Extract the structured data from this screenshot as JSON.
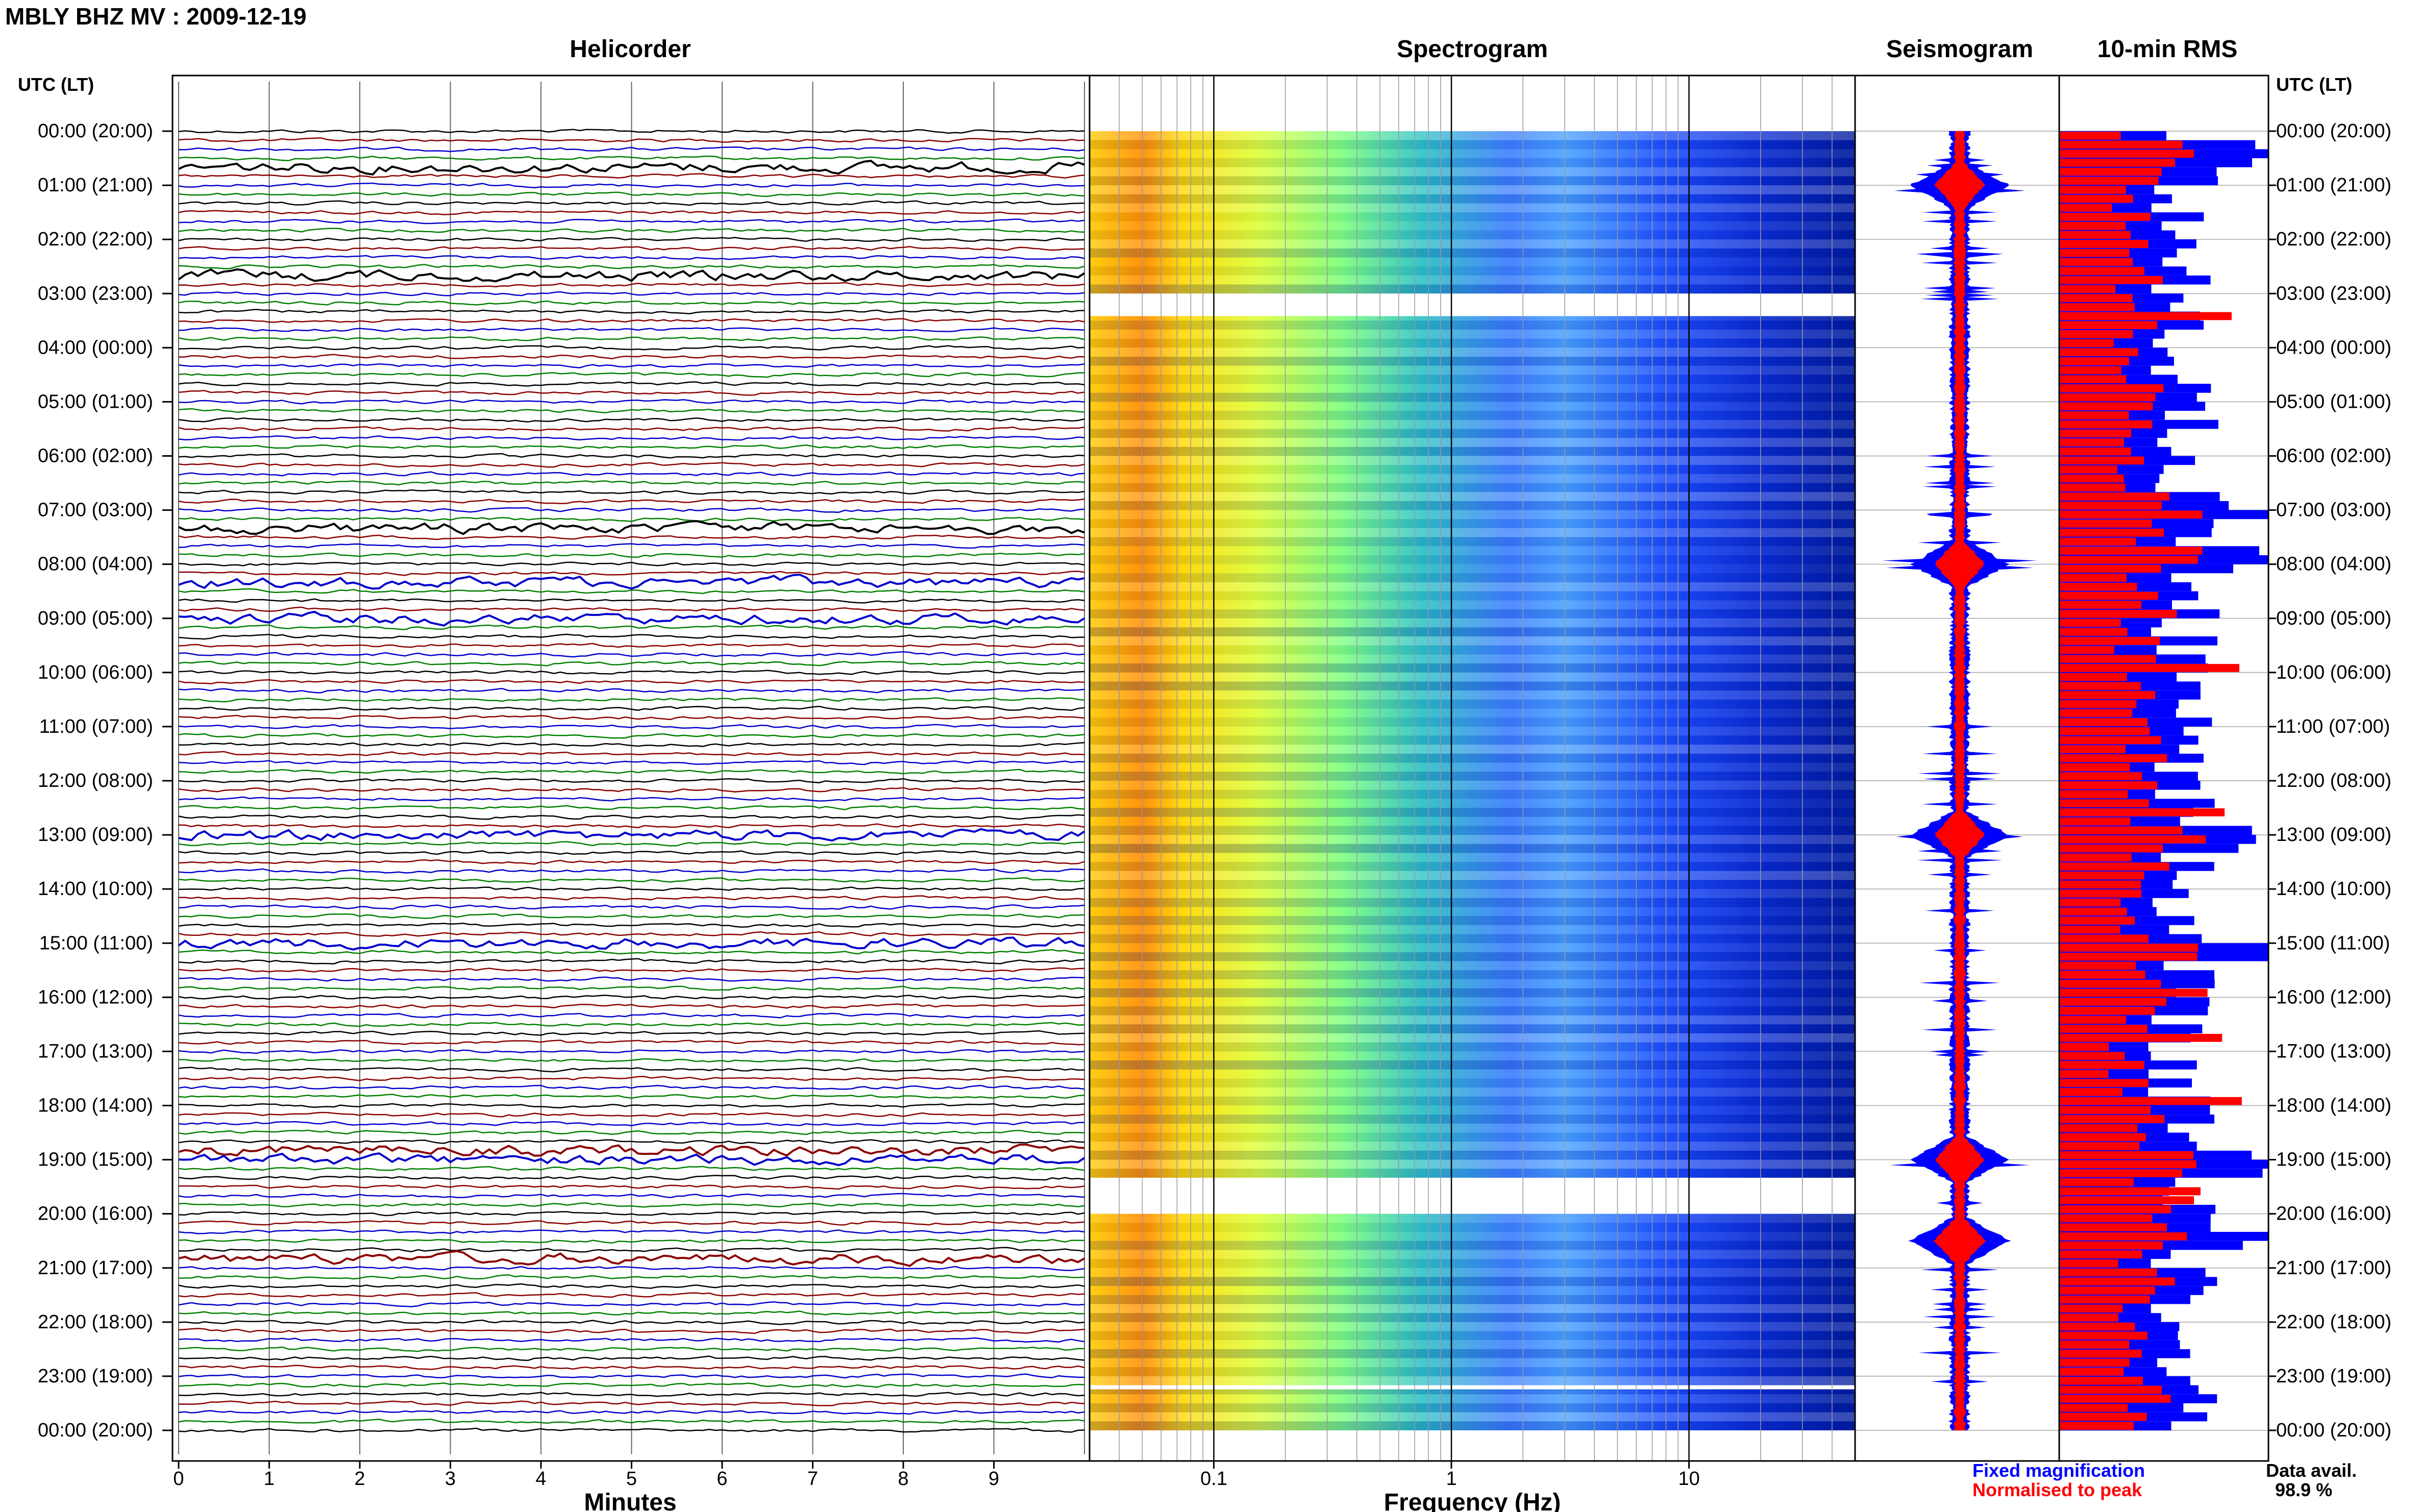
{
  "title": "MBLY BHZ MV : 2009-12-19",
  "panels": {
    "helicorder": "Helicorder",
    "spectrogram": "Spectrogram",
    "seismogram": "Seismogram",
    "rms": "10-min RMS"
  },
  "utc_label_left": "UTC (LT)",
  "utc_label_right": "UTC (LT)",
  "time_labels": [
    "00:00 (20:00)",
    "01:00 (21:00)",
    "02:00 (22:00)",
    "03:00 (23:00)",
    "04:00 (00:00)",
    "05:00 (01:00)",
    "06:00 (02:00)",
    "07:00 (03:00)",
    "08:00 (04:00)",
    "09:00 (05:00)",
    "10:00 (06:00)",
    "11:00 (07:00)",
    "12:00 (08:00)",
    "13:00 (09:00)",
    "14:00 (10:00)",
    "15:00 (11:00)",
    "16:00 (12:00)",
    "17:00 (13:00)",
    "18:00 (14:00)",
    "19:00 (15:00)",
    "20:00 (16:00)",
    "21:00 (17:00)",
    "22:00 (18:00)",
    "23:00 (19:00)",
    "00:00 (20:00)"
  ],
  "minutes_ticks": [
    "0",
    "1",
    "2",
    "3",
    "4",
    "5",
    "6",
    "7",
    "8",
    "9"
  ],
  "minutes_label": "Minutes",
  "freq_ticks": [
    "0.1",
    "1",
    "10"
  ],
  "freq_label": "Frequency (Hz)",
  "legend": {
    "fixed": "Fixed magnification",
    "normalised": "Normalised to peak",
    "fixed_color": "#0000ff",
    "normalised_color": "#ff0000"
  },
  "data_avail_label": "Data avail.",
  "data_avail_value": "98.9 %",
  "colors": {
    "helicorder_lines": [
      "#000000",
      "#8b0000",
      "#0000cd",
      "#008000"
    ],
    "spectrogram_low": "#00008b",
    "spectrogram_high": "#ff4500"
  },
  "chart_data": [
    {
      "type": "line",
      "title": "Helicorder",
      "xlabel": "Minutes",
      "xlim": [
        0,
        10
      ],
      "lines_per_hour": 6,
      "hours": 24,
      "event_rows_utc": [
        "00:40",
        "02:40",
        "07:20",
        "08:20",
        "09:00",
        "13:00",
        "15:00",
        "18:50",
        "19:00",
        "20:50"
      ]
    },
    {
      "type": "heatmap",
      "title": "Spectrogram",
      "xlabel": "Frequency (Hz)",
      "xscale": "log",
      "xlim": [
        0.03,
        50
      ],
      "gaps_utc": [
        "03:00-03:25",
        "19:20-20:00",
        "23:10"
      ]
    },
    {
      "type": "line",
      "title": "Seismogram",
      "peaks_utc": [
        "01:00",
        "08:00",
        "13:00",
        "19:00",
        "20:30"
      ]
    },
    {
      "type": "bar",
      "title": "10-min RMS",
      "series": [
        {
          "name": "Fixed magnification"
        },
        {
          "name": "Normalised to peak"
        }
      ],
      "peaks_utc": [
        "00:20",
        "07:00",
        "07:50",
        "13:00",
        "15:00",
        "19:00",
        "20:20"
      ]
    }
  ]
}
